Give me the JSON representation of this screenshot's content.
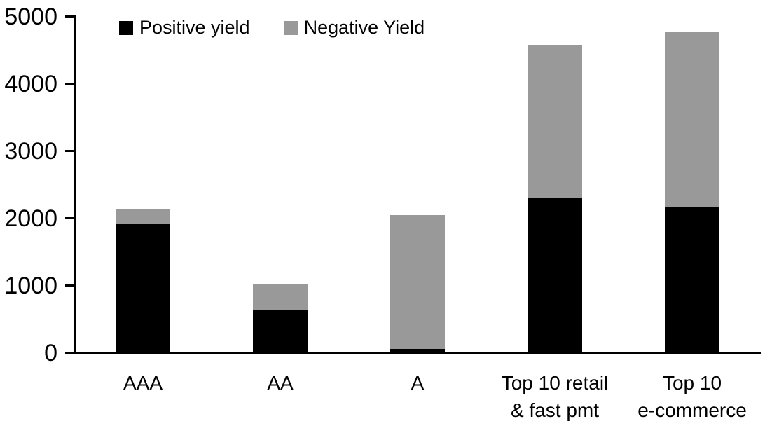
{
  "chart_data": {
    "type": "bar",
    "stacked": true,
    "title": "",
    "xlabel": "",
    "ylabel": "",
    "categories": [
      "AAA",
      "AA",
      "A",
      "Top 10 retail\n& fast pmt",
      "Top 10\ne-commerce"
    ],
    "series": [
      {
        "name": "Positive yield",
        "color": "#000000",
        "values": [
          1900,
          620,
          40,
          2280,
          2150
        ]
      },
      {
        "name": "Negative Yield",
        "color": "#999999",
        "values": [
          230,
          380,
          1990,
          2280,
          2600
        ]
      }
    ],
    "totals": [
      2130,
      1000,
      2030,
      4560,
      4750
    ],
    "ylim": [
      0,
      5000
    ],
    "yticks": [
      "0",
      "1000",
      "2000",
      "3000",
      "4000",
      "5000"
    ],
    "grid": false,
    "legend_position": "top-left"
  },
  "colors": {
    "axis": "#000000",
    "background": "#ffffff",
    "positive_series": "#000000",
    "negative_series": "#999999"
  }
}
